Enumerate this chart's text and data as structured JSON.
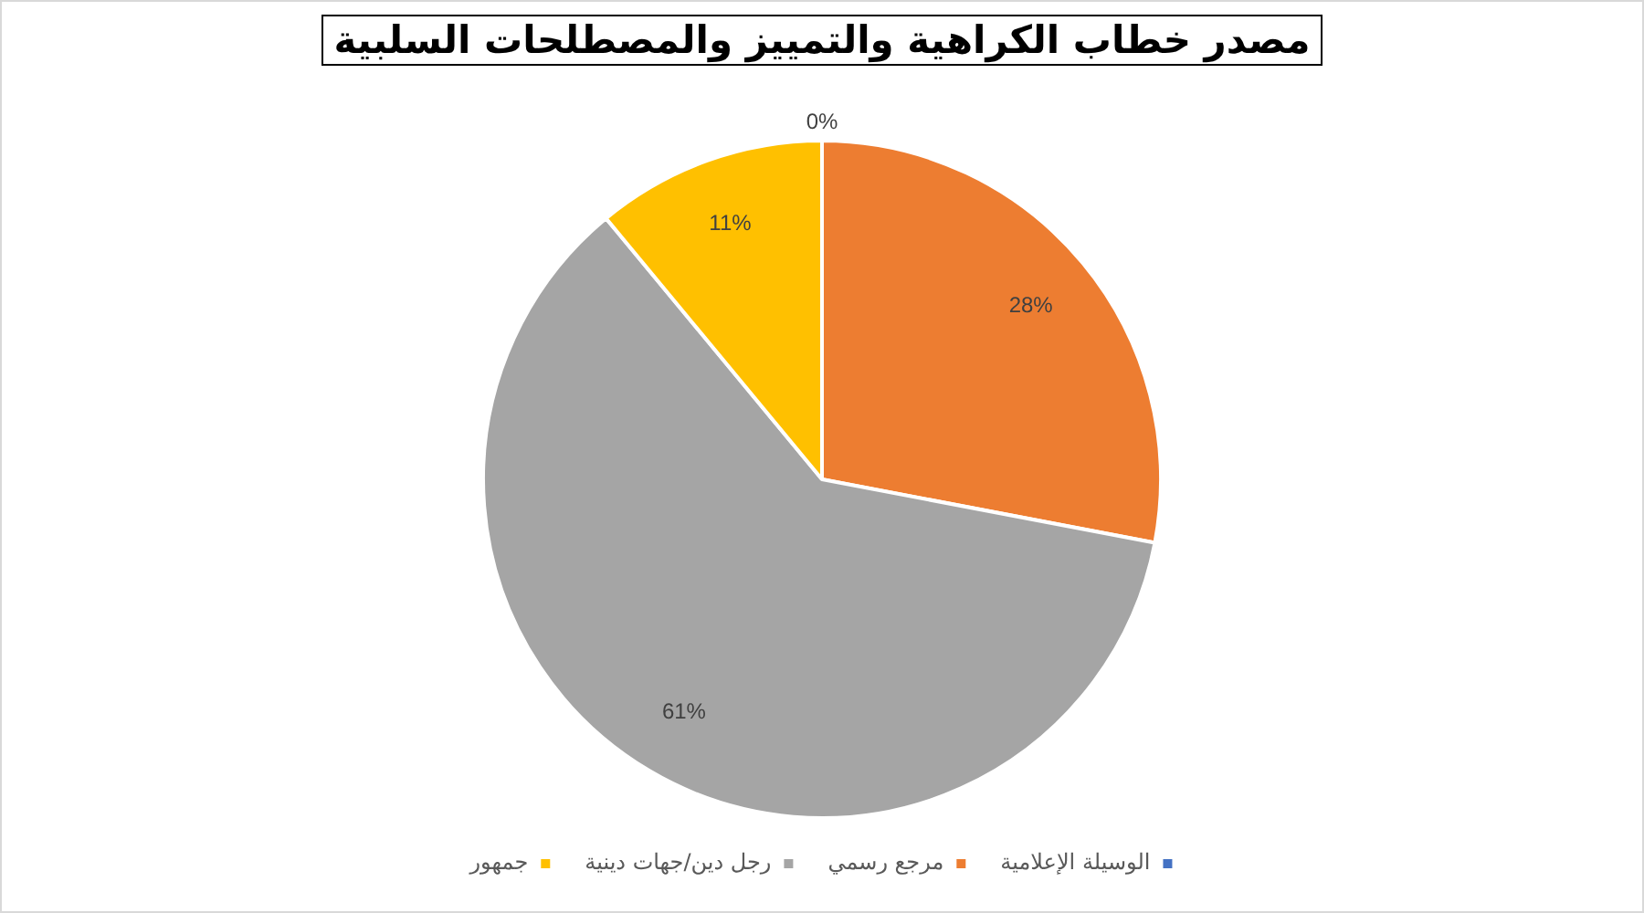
{
  "chart_data": {
    "type": "pie",
    "title": "مصدر خطاب الكراهية والتمييز والمصطلحات السلبية",
    "categories": [
      "الوسيلة الإعلامية",
      "مرجع رسمي",
      "رجل دين/جهات دينية",
      "جمهور"
    ],
    "values": [
      0,
      28,
      61,
      11
    ],
    "colors": [
      "#4472c4",
      "#ed7d31",
      "#a5a5a5",
      "#ffc000"
    ],
    "value_labels": [
      "0%",
      "28%",
      "61%",
      "11%"
    ],
    "legend": "bottom"
  }
}
